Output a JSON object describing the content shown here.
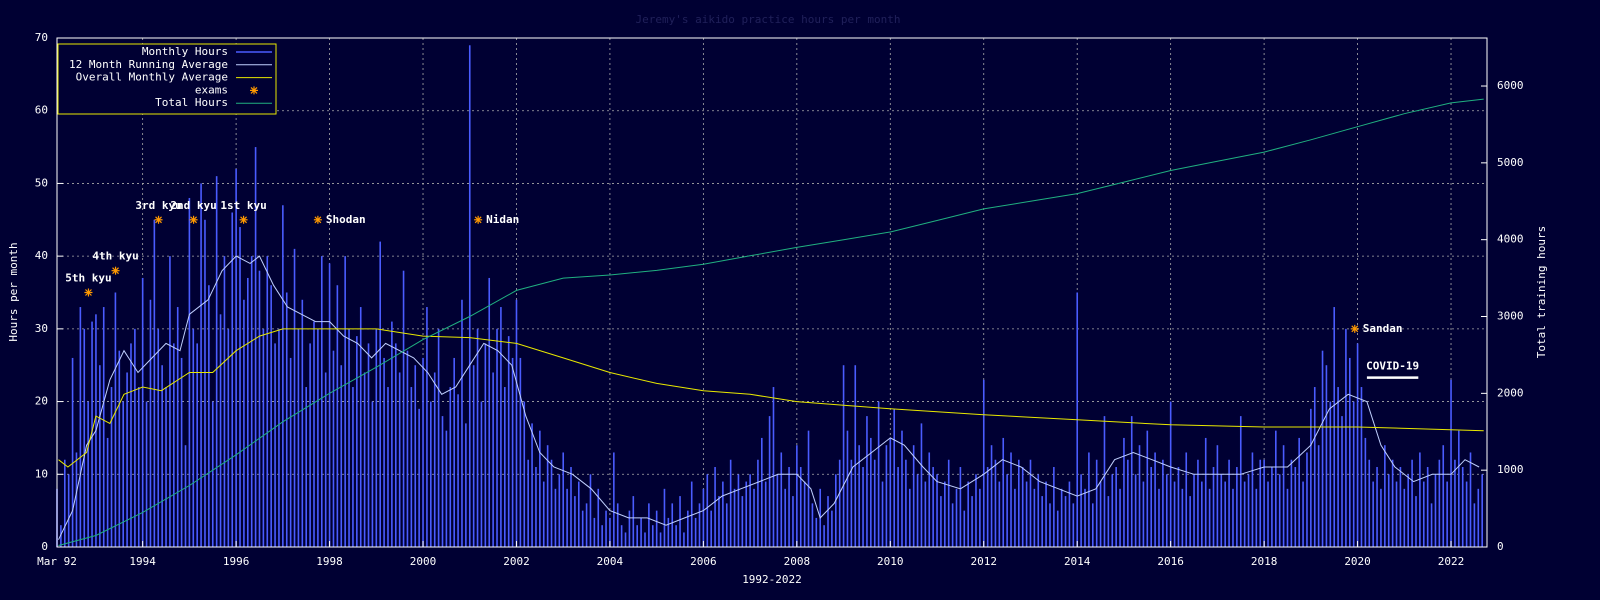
{
  "chart_data": {
    "type": "combo",
    "title": "Jeremy's aikido practice hours per month",
    "xlabel": "1992-2022",
    "ylabel": "Hours per month",
    "y2label": "Total training hours",
    "xlim": [
      1992.167,
      2022.77
    ],
    "ylim": [
      0,
      70
    ],
    "y2lim": [
      0,
      6625
    ],
    "xticks": [
      {
        "value": 1992.167,
        "label": "Mar 92"
      },
      1994,
      1996,
      1998,
      2000,
      2002,
      2004,
      2006,
      2008,
      2010,
      2012,
      2014,
      2016,
      2018,
      2020,
      2022
    ],
    "yticks": [
      0,
      10,
      20,
      30,
      40,
      50,
      60,
      70
    ],
    "y2ticks": [
      0,
      1000,
      2000,
      3000,
      4000,
      5000,
      6000
    ],
    "grid": true,
    "legend": "top-left",
    "series": [
      {
        "name": "Monthly Hours",
        "type": "bar",
        "color": "#4a5cff",
        "values": [
          8,
          3,
          12,
          10,
          26,
          13,
          33,
          30,
          20,
          31,
          32,
          25,
          33,
          15,
          22,
          35,
          27,
          20,
          24,
          28,
          30,
          22,
          37,
          20,
          34,
          45,
          30,
          25,
          22,
          40,
          28,
          33,
          26,
          14,
          48,
          30,
          28,
          50,
          45,
          36,
          20,
          51,
          32,
          40,
          30,
          46,
          52,
          44,
          34,
          37,
          40,
          55,
          38,
          30,
          40,
          36,
          28,
          30,
          47,
          35,
          26,
          41,
          30,
          34,
          22,
          28,
          31,
          30,
          40,
          24,
          39,
          27,
          36,
          25,
          40,
          30,
          22,
          29,
          33,
          24,
          28,
          20,
          30,
          42,
          26,
          22,
          31,
          28,
          24,
          38,
          27,
          22,
          25,
          19,
          26,
          33,
          20,
          24,
          30,
          18,
          16,
          22,
          26,
          21,
          34,
          17,
          69,
          25,
          30,
          20,
          28,
          37,
          24,
          30,
          33,
          22,
          29,
          26,
          34,
          26,
          20,
          12,
          17,
          11,
          16,
          9,
          14,
          12,
          8,
          10,
          13,
          8,
          11,
          7,
          9,
          5,
          6,
          10,
          4,
          8,
          3,
          5,
          4,
          13,
          6,
          3,
          2,
          5,
          7,
          3,
          4,
          2,
          6,
          3,
          5,
          2,
          8,
          4,
          6,
          3,
          7,
          2,
          5,
          9,
          4,
          6,
          8,
          10,
          5,
          11,
          7,
          9,
          6,
          12,
          8,
          10,
          7,
          9,
          10,
          8,
          12,
          15,
          9,
          18,
          22,
          10,
          13,
          8,
          11,
          7,
          14,
          11,
          9,
          16,
          6,
          4,
          8,
          3,
          7,
          5,
          10,
          12,
          25,
          16,
          12,
          25,
          14,
          11,
          18,
          15,
          12,
          20,
          9,
          14,
          15,
          19,
          11,
          16,
          12,
          8,
          14,
          10,
          17,
          9,
          13,
          11,
          10,
          7,
          9,
          12,
          6,
          8,
          11,
          5,
          9,
          7,
          10,
          8,
          23,
          11,
          14,
          12,
          9,
          15,
          10,
          13,
          8,
          12,
          11,
          9,
          12,
          8,
          10,
          7,
          9,
          6,
          11,
          5,
          8,
          7,
          9,
          6,
          35,
          10,
          8,
          13,
          6,
          12,
          9,
          18,
          7,
          10,
          11,
          8,
          15,
          12,
          18,
          10,
          14,
          9,
          16,
          11,
          13,
          8,
          12,
          10,
          20,
          9,
          11,
          8,
          13,
          7,
          10,
          12,
          9,
          15,
          8,
          11,
          14,
          10,
          9,
          12,
          8,
          11,
          18,
          9,
          10,
          13,
          8,
          12,
          12,
          9,
          11,
          16,
          10,
          14,
          8,
          12,
          11,
          15,
          9,
          13,
          19,
          22,
          14,
          27,
          25,
          20,
          33,
          22,
          18,
          30,
          26,
          20,
          28,
          22,
          15,
          12,
          9,
          11,
          8,
          14,
          10,
          12,
          9,
          11,
          8,
          10,
          12,
          7,
          13,
          9,
          11,
          6,
          10,
          12,
          14,
          9,
          23,
          12,
          16,
          11,
          9,
          13,
          6,
          8,
          10
        ]
      },
      {
        "name": "12 Month Running Average",
        "type": "line",
        "color": "#c0d0ff",
        "x": [
          1992.2,
          1992.5,
          1992.8,
          1993.0,
          1993.3,
          1993.6,
          1993.9,
          1994.2,
          1994.5,
          1994.8,
          1995.0,
          1995.4,
          1995.7,
          1996.0,
          1996.3,
          1996.5,
          1996.8,
          1997.1,
          1997.4,
          1997.7,
          1998.0,
          1998.3,
          1998.6,
          1998.9,
          1999.2,
          1999.5,
          1999.8,
          2000.1,
          2000.4,
          2000.7,
          2001.0,
          2001.3,
          2001.6,
          2001.9,
          2002.2,
          2002.5,
          2002.8,
          2003.2,
          2003.6,
          2004.0,
          2004.4,
          2004.8,
          2005.2,
          2005.6,
          2006.0,
          2006.4,
          2006.8,
          2007.2,
          2007.6,
          2008.0,
          2008.3,
          2008.5,
          2008.8,
          2009.2,
          2009.6,
          2010.0,
          2010.3,
          2010.7,
          2011.0,
          2011.5,
          2012.0,
          2012.4,
          2012.8,
          2013.2,
          2013.6,
          2014.0,
          2014.4,
          2014.8,
          2015.2,
          2015.6,
          2016.0,
          2016.5,
          2017.0,
          2017.5,
          2018.0,
          2018.5,
          2019.0,
          2019.4,
          2019.8,
          2020.2,
          2020.5,
          2020.8,
          2021.2,
          2021.6,
          2022.0,
          2022.3,
          2022.6
        ],
        "values": [
          1,
          5,
          14,
          16,
          23,
          27,
          24,
          26,
          28,
          27,
          32,
          34,
          38,
          40,
          39,
          40,
          36,
          33,
          32,
          31,
          31,
          29,
          28,
          26,
          28,
          27,
          26,
          24,
          21,
          22,
          25,
          28,
          27,
          25,
          18,
          13,
          11,
          10,
          8,
          5,
          4,
          4,
          3,
          4,
          5,
          7,
          8,
          9,
          10,
          10,
          8,
          4,
          6,
          11,
          13,
          15,
          14,
          11,
          9,
          8,
          10,
          12,
          11,
          9,
          8,
          7,
          8,
          12,
          13,
          12,
          11,
          10,
          10,
          10,
          11,
          11,
          14,
          19,
          21,
          20,
          14,
          11,
          9,
          10,
          10,
          12,
          11
        ]
      },
      {
        "name": "Overall Monthly Average",
        "type": "line",
        "color": "#e8e800",
        "x": [
          1992.2,
          1992.4,
          1992.8,
          1993.0,
          1993.3,
          1993.6,
          1994.0,
          1994.4,
          1995.0,
          1995.5,
          1996.0,
          1996.5,
          1997.0,
          1998.0,
          1999.0,
          2000.0,
          2001.0,
          2002.0,
          2003.0,
          2004.0,
          2005.0,
          2006.0,
          2007.0,
          2008.0,
          2009.0,
          2010.0,
          2012.0,
          2014.0,
          2016.0,
          2018.0,
          2020.0,
          2022.7
        ],
        "values": [
          12,
          11,
          13,
          18,
          17,
          21,
          22,
          21.5,
          24,
          24,
          27,
          29,
          30,
          30,
          30,
          29,
          28.8,
          28,
          26,
          24,
          22.5,
          21.5,
          21,
          20,
          19.5,
          19,
          18.2,
          17.5,
          16.8,
          16.5,
          16.5,
          16
        ]
      },
      {
        "name": "exams",
        "type": "scatter",
        "color": "#ff9900",
        "x": [
          1992.84,
          1993.42,
          1994.34,
          1995.09,
          1996.16,
          1997.75,
          2001.18,
          2019.94
        ],
        "values": [
          35,
          38,
          45,
          45,
          45,
          45,
          45,
          30
        ],
        "labels": [
          "5th kyu",
          "4th kyu",
          "3rd kyu",
          "2nd kyu",
          "1st kyu",
          "Shodan",
          "Nidan",
          "Sandan"
        ]
      },
      {
        "name": "Total Hours",
        "type": "line",
        "axis": "y2",
        "color": "#20b080",
        "x": [
          1992.2,
          1993.0,
          1994.0,
          1995.0,
          1996.0,
          1997.0,
          1998.0,
          1999.0,
          2000.0,
          2001.0,
          2002.0,
          2003.0,
          2004.0,
          2005.0,
          2006.0,
          2007.0,
          2008.0,
          2009.0,
          2010.0,
          2011.0,
          2012.0,
          2013.0,
          2014.0,
          2015.0,
          2016.0,
          2017.0,
          2018.0,
          2019.0,
          2020.0,
          2021.0,
          2022.0,
          2022.7
        ],
        "values": [
          20,
          150,
          450,
          800,
          1200,
          1630,
          2000,
          2340,
          2700,
          3000,
          3340,
          3500,
          3540,
          3600,
          3680,
          3790,
          3900,
          4000,
          4100,
          4250,
          4400,
          4500,
          4600,
          4750,
          4900,
          5020,
          5140,
          5300,
          5470,
          5640,
          5780,
          5830
        ]
      }
    ],
    "annotations": [
      {
        "text": "COVID-19",
        "x": [
          2020.2,
          2021.3
        ],
        "y": 23.3
      }
    ]
  }
}
